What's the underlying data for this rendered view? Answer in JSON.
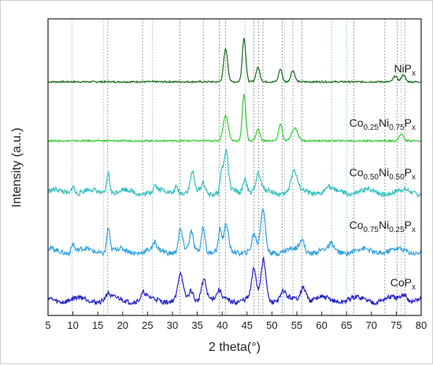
{
  "chart_data": {
    "type": "line",
    "xlabel": "2 theta(°)",
    "ylabel": "Intensity (a.u.)",
    "xlim": [
      5,
      80
    ],
    "x_ticks": [
      5,
      10,
      15,
      20,
      25,
      30,
      35,
      40,
      45,
      50,
      55,
      60,
      65,
      70,
      75,
      80
    ],
    "reference_lines_gray": [
      17.0,
      24.0,
      31.5,
      36.2,
      39.4,
      40.7,
      46.4,
      47.3,
      48.2,
      52.1,
      54.2,
      56.0,
      66.5,
      72.7,
      75.2,
      76.7
    ],
    "reference_lines_blue": [
      9.8,
      16.2,
      26.0,
      44.6,
      52.5,
      62.0,
      65.0,
      76.0
    ],
    "series": [
      {
        "name": "NiP",
        "sub": "x",
        "color": "#1a6b1a",
        "offset": 4,
        "peaks": [
          [
            40.7,
            2.3,
            0.4
          ],
          [
            44.4,
            3.1,
            0.35
          ],
          [
            47.2,
            1.0,
            0.4
          ],
          [
            51.7,
            0.9,
            0.35
          ],
          [
            54.2,
            0.8,
            0.4
          ],
          [
            74.8,
            0.4,
            0.4
          ],
          [
            76.4,
            0.5,
            0.4
          ]
        ]
      },
      {
        "name": "Co",
        "sub": "0.25",
        "name2": "Ni",
        "sub2": "0.75",
        "name3": "P",
        "sub3": "x",
        "color": "#33cc33",
        "offset": 3,
        "peaks": [
          [
            40.7,
            1.8,
            0.5
          ],
          [
            44.4,
            3.3,
            0.35
          ],
          [
            47.2,
            0.8,
            0.4
          ],
          [
            51.7,
            1.2,
            0.35
          ],
          [
            54.6,
            0.9,
            0.6
          ],
          [
            76.0,
            0.5,
            0.4
          ]
        ]
      },
      {
        "name": "Co",
        "sub": "0.50",
        "name2": "Ni",
        "sub2": "0.50",
        "name3": "P",
        "sub3": "x",
        "color": "#33bfbf",
        "offset": 2,
        "peaks": [
          [
            10.0,
            0.6,
            0.3
          ],
          [
            17.1,
            1.5,
            0.3
          ],
          [
            26.5,
            0.4,
            0.3
          ],
          [
            30.8,
            0.5,
            0.4
          ],
          [
            34.0,
            1.3,
            0.35
          ],
          [
            36.2,
            0.7,
            0.35
          ],
          [
            39.9,
            1.4,
            0.3
          ],
          [
            40.8,
            2.8,
            0.4
          ],
          [
            44.6,
            1.1,
            0.4
          ],
          [
            47.2,
            1.2,
            0.5
          ],
          [
            54.4,
            1.4,
            0.6
          ],
          [
            61.2,
            0.4,
            0.4
          ]
        ]
      },
      {
        "name": "Co",
        "sub": "0.75",
        "name2": "Ni",
        "sub2": "0.25",
        "name3": "P",
        "sub3": "x",
        "color": "#33a0e0",
        "offset": 1,
        "peaks": [
          [
            10.0,
            0.6,
            0.3
          ],
          [
            17.1,
            1.7,
            0.3
          ],
          [
            26.5,
            0.5,
            0.3
          ],
          [
            31.6,
            1.5,
            0.4
          ],
          [
            33.8,
            1.2,
            0.35
          ],
          [
            36.2,
            1.9,
            0.35
          ],
          [
            39.6,
            1.4,
            0.3
          ],
          [
            40.8,
            1.8,
            0.4
          ],
          [
            46.4,
            1.1,
            0.4
          ],
          [
            48.2,
            2.9,
            0.45
          ],
          [
            56.0,
            0.8,
            0.5
          ],
          [
            62.0,
            0.4,
            0.4
          ]
        ]
      },
      {
        "name": "CoP",
        "sub": "x",
        "color": "#2323c8",
        "offset": 0,
        "peaks": [
          [
            17.0,
            0.4,
            0.4
          ],
          [
            24.2,
            0.4,
            0.4
          ],
          [
            31.6,
            1.8,
            0.45
          ],
          [
            33.8,
            0.6,
            0.4
          ],
          [
            36.3,
            1.6,
            0.5
          ],
          [
            39.4,
            0.5,
            0.4
          ],
          [
            46.4,
            2.0,
            0.45
          ],
          [
            48.3,
            2.9,
            0.5
          ],
          [
            52.3,
            0.5,
            0.4
          ],
          [
            56.3,
            1.0,
            0.6
          ],
          [
            76.7,
            0.5,
            0.5
          ]
        ]
      }
    ]
  }
}
